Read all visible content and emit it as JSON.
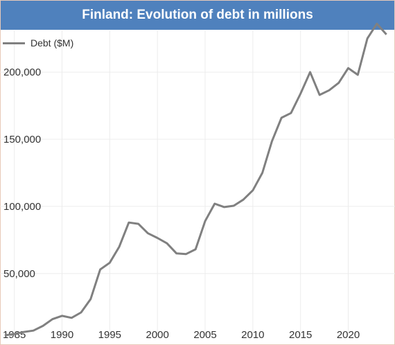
{
  "chart_data": {
    "type": "line",
    "title": "Finland: Evolution of debt in millions",
    "xlabel": "",
    "ylabel": "",
    "xlim": [
      1983.5,
      2024.9
    ],
    "ylim": [
      4000,
      231000
    ],
    "x_ticks": [
      1985,
      1990,
      1995,
      2000,
      2005,
      2010,
      2015,
      2020
    ],
    "x_tick_labels": [
      "1985",
      "1990",
      "1995",
      "2000",
      "2005",
      "2010",
      "2015",
      "2020"
    ],
    "y_ticks": [
      50000,
      100000,
      150000,
      200000
    ],
    "y_tick_labels": [
      "50,000",
      "100,000",
      "150,000",
      "200,000"
    ],
    "grid": true,
    "legend_position": "top-left",
    "series": [
      {
        "name": "Debt ($M)",
        "color": "#808080",
        "x": [
          1984,
          1985,
          1986,
          1987,
          1988,
          1989,
          1990,
          1991,
          1992,
          1993,
          1994,
          1995,
          1996,
          1997,
          1998,
          1999,
          2000,
          2001,
          2002,
          2003,
          2004,
          2005,
          2006,
          2007,
          2008,
          2009,
          2010,
          2011,
          2012,
          2013,
          2014,
          2015,
          2016,
          2017,
          2018,
          2019,
          2020,
          2021,
          2022,
          2023,
          2024
        ],
        "y": [
          4000,
          5000,
          6500,
          7500,
          11000,
          16000,
          18500,
          17000,
          21000,
          31000,
          53000,
          58000,
          70000,
          88000,
          87000,
          80000,
          76500,
          72500,
          65000,
          64500,
          68000,
          89000,
          102000,
          99500,
          100500,
          105000,
          112000,
          125000,
          148500,
          166000,
          169500,
          184000,
          200000,
          183000,
          186500,
          192000,
          203000,
          198000,
          225000,
          236000,
          228000
        ]
      }
    ]
  }
}
